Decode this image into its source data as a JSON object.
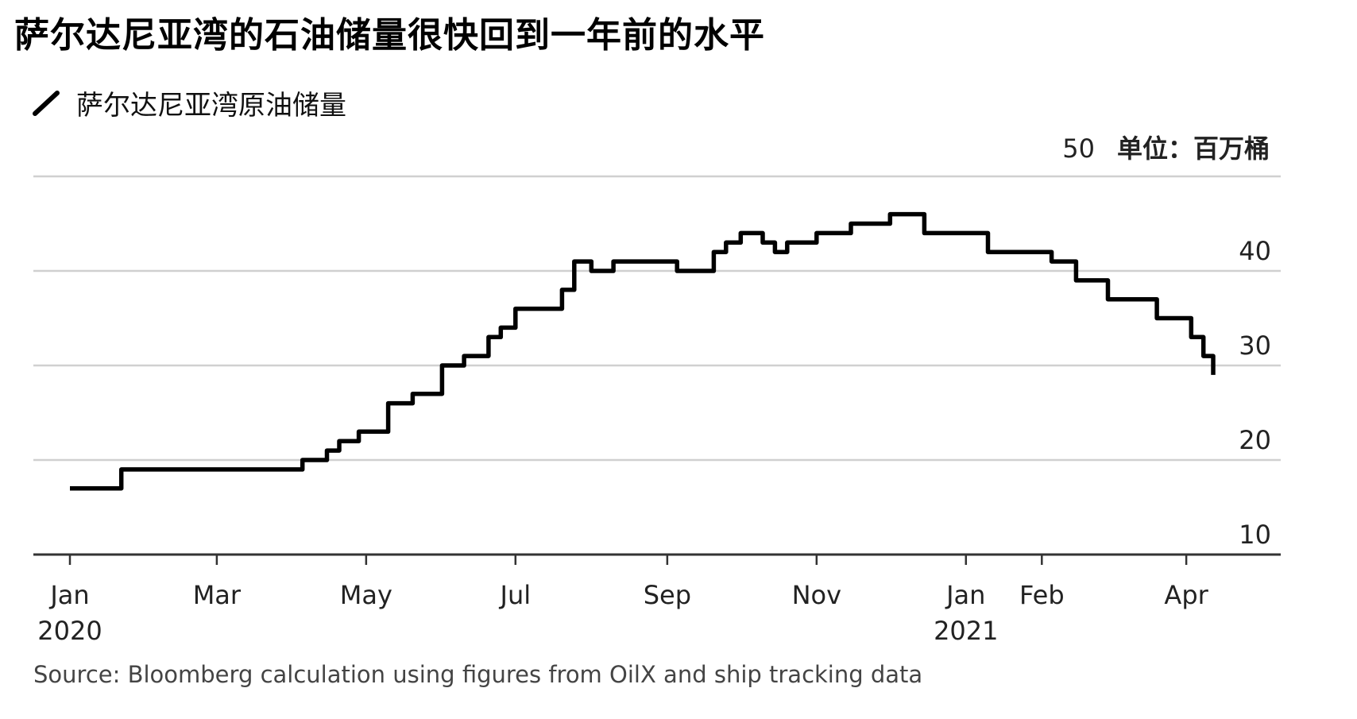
{
  "title": "萨尔达尼亚湾的石油储量很快回到一年前的水平",
  "unit": {
    "top_tick": "50",
    "label": "单位：百万桶"
  },
  "source": "Source: Bloomberg calculation using figures from OilX and ship tracking data",
  "colors": {
    "line": "#000000",
    "grid": "#d0d0d0",
    "axis": "#333333"
  },
  "chart_data": {
    "type": "line",
    "series": [
      {
        "name": "萨尔达尼亚湾原油储量",
        "x": [
          "2020-01-01",
          "2020-01-20",
          "2020-01-22",
          "2020-02-01",
          "2020-02-15",
          "2020-03-01",
          "2020-03-15",
          "2020-04-01",
          "2020-04-05",
          "2020-04-10",
          "2020-04-15",
          "2020-04-20",
          "2020-04-25",
          "2020-04-28",
          "2020-05-01",
          "2020-05-10",
          "2020-05-20",
          "2020-05-28",
          "2020-06-01",
          "2020-06-10",
          "2020-06-20",
          "2020-06-25",
          "2020-07-01",
          "2020-07-17",
          "2020-07-20",
          "2020-07-25",
          "2020-08-01",
          "2020-08-10",
          "2020-08-20",
          "2020-08-25",
          "2020-09-01",
          "2020-09-05",
          "2020-09-10",
          "2020-09-20",
          "2020-09-25",
          "2020-10-01",
          "2020-10-10",
          "2020-10-15",
          "2020-10-20",
          "2020-11-01",
          "2020-11-10",
          "2020-11-15",
          "2020-11-25",
          "2020-12-01",
          "2020-12-15",
          "2020-12-25",
          "2021-01-01",
          "2021-01-10",
          "2021-01-20",
          "2021-01-28",
          "2021-02-05",
          "2021-02-15",
          "2021-02-28",
          "2021-03-10",
          "2021-03-20",
          "2021-03-28",
          "2021-04-03",
          "2021-04-08",
          "2021-04-12"
        ],
        "y": [
          17,
          17,
          19,
          19,
          19,
          19,
          19,
          19,
          20,
          20,
          21,
          22,
          22,
          23,
          23,
          26,
          27,
          27,
          30,
          31,
          33,
          34,
          36,
          36,
          38,
          41,
          40,
          41,
          41,
          41,
          41,
          40,
          40,
          42,
          43,
          44,
          43,
          42,
          43,
          44,
          44,
          45,
          45,
          46,
          44,
          44,
          44,
          42,
          42,
          42,
          41,
          39,
          37,
          37,
          35,
          35,
          33,
          31,
          29
        ]
      }
    ],
    "legend": {
      "label": "萨尔达尼亚湾原油储量",
      "placement": "top-left"
    },
    "ylim": [
      10,
      50
    ],
    "y_ticks": [
      "10",
      "20",
      "30",
      "40"
    ],
    "y_axis_position": "right",
    "x_ticks": [
      {
        "date": "2020-01-01",
        "label": "Jan",
        "sublabel": "2020"
      },
      {
        "date": "2020-03-01",
        "label": "Mar",
        "sublabel": ""
      },
      {
        "date": "2020-05-01",
        "label": "May",
        "sublabel": ""
      },
      {
        "date": "2020-07-01",
        "label": "Jul",
        "sublabel": ""
      },
      {
        "date": "2020-09-01",
        "label": "Sep",
        "sublabel": ""
      },
      {
        "date": "2020-11-01",
        "label": "Nov",
        "sublabel": ""
      },
      {
        "date": "2021-01-01",
        "label": "Jan",
        "sublabel": "2021"
      },
      {
        "date": "2021-02-01",
        "label": "Feb",
        "sublabel": ""
      },
      {
        "date": "2021-04-01",
        "label": "Apr",
        "sublabel": ""
      }
    ],
    "grid": true
  }
}
